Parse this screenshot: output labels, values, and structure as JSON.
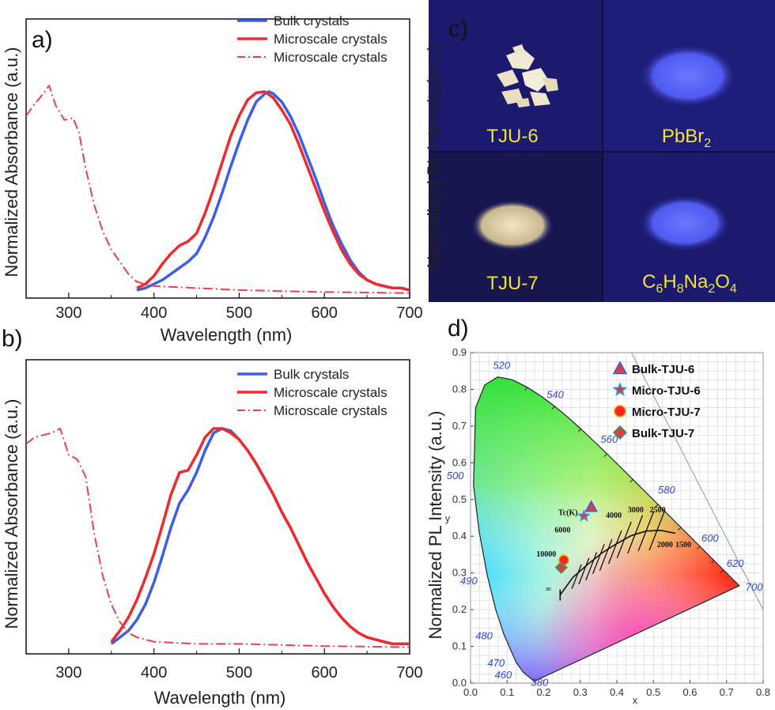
{
  "colors": {
    "bulk": "#3b5ee8",
    "micro": "#f02a2a",
    "dashdot": "#e8404a",
    "photo_bg": "#1b1a6e",
    "photo_label": "#f0e33a"
  },
  "chart_data": [
    {
      "panel": "a)",
      "type": "line",
      "xlabel": "Wavelength (nm)",
      "ylabel": "Normalized Absorbance (a.u.)",
      "xlim": [
        250,
        700
      ],
      "xticks": [
        "300",
        "400",
        "500",
        "600",
        "700"
      ],
      "legend_position": "top-right",
      "series": [
        {
          "name": "Bulk crystals",
          "style": "solid",
          "color": "#3b5ee8",
          "x": [
            380,
            390,
            400,
            410,
            420,
            430,
            440,
            450,
            460,
            470,
            480,
            490,
            500,
            510,
            520,
            530,
            535,
            540,
            550,
            560,
            570,
            580,
            590,
            600,
            610,
            620,
            630,
            640,
            650,
            660,
            670,
            680,
            690,
            700
          ],
          "y": [
            0.02,
            0.03,
            0.05,
            0.07,
            0.1,
            0.13,
            0.16,
            0.2,
            0.28,
            0.38,
            0.5,
            0.63,
            0.75,
            0.86,
            0.95,
            0.99,
            1.0,
            0.99,
            0.95,
            0.88,
            0.79,
            0.68,
            0.57,
            0.45,
            0.34,
            0.25,
            0.17,
            0.11,
            0.07,
            0.05,
            0.04,
            0.03,
            0.03,
            0.02
          ]
        },
        {
          "name": "Microscale crystals",
          "style": "solid",
          "color": "#f02a2a",
          "x": [
            380,
            390,
            400,
            405,
            410,
            420,
            430,
            440,
            450,
            460,
            470,
            480,
            490,
            500,
            510,
            520,
            530,
            540,
            550,
            560,
            570,
            580,
            590,
            600,
            610,
            620,
            630,
            640,
            650,
            660,
            670,
            680,
            690,
            700
          ],
          "y": [
            0.03,
            0.05,
            0.09,
            0.12,
            0.15,
            0.2,
            0.24,
            0.26,
            0.3,
            0.4,
            0.52,
            0.65,
            0.78,
            0.88,
            0.96,
            0.995,
            1.0,
            0.97,
            0.91,
            0.84,
            0.74,
            0.63,
            0.52,
            0.41,
            0.31,
            0.22,
            0.15,
            0.1,
            0.07,
            0.05,
            0.04,
            0.03,
            0.03,
            0.02
          ]
        },
        {
          "name": "Microscale crystals",
          "style": "dashdot",
          "color": "#e8404a",
          "x": [
            250,
            260,
            270,
            277,
            285,
            295,
            305,
            312,
            320,
            330,
            340,
            350,
            360,
            370,
            380,
            390,
            400,
            450,
            500,
            550,
            600,
            650,
            700
          ],
          "y": [
            0.88,
            0.94,
            0.99,
            1.03,
            0.93,
            0.86,
            0.87,
            0.8,
            0.62,
            0.44,
            0.31,
            0.22,
            0.16,
            0.1,
            0.06,
            0.05,
            0.04,
            0.03,
            0.02,
            0.015,
            0.01,
            0.008,
            0.005
          ]
        }
      ]
    },
    {
      "panel": "b)",
      "type": "line",
      "xlabel": "Wavelength (nm)",
      "ylabel": "Normalized Absorbance (a.u.)",
      "xlim": [
        250,
        700
      ],
      "xticks": [
        "300",
        "400",
        "500",
        "600",
        "700"
      ],
      "legend_position": "top-right",
      "series": [
        {
          "name": "Bulk crystals",
          "style": "solid",
          "color": "#3b5ee8",
          "x": [
            350,
            360,
            370,
            380,
            390,
            400,
            410,
            420,
            430,
            440,
            450,
            460,
            470,
            480,
            490,
            500,
            510,
            520,
            530,
            540,
            550,
            560,
            570,
            580,
            590,
            600,
            610,
            620,
            630,
            640,
            650,
            660,
            670,
            680,
            690,
            700
          ],
          "y": [
            0.02,
            0.05,
            0.08,
            0.13,
            0.2,
            0.3,
            0.42,
            0.55,
            0.66,
            0.72,
            0.8,
            0.9,
            0.98,
            1.0,
            0.99,
            0.95,
            0.9,
            0.84,
            0.77,
            0.7,
            0.62,
            0.55,
            0.47,
            0.39,
            0.32,
            0.25,
            0.19,
            0.14,
            0.1,
            0.07,
            0.05,
            0.04,
            0.03,
            0.02,
            0.02,
            0.02
          ]
        },
        {
          "name": "Microscale crystals",
          "style": "solid",
          "color": "#f02a2a",
          "x": [
            350,
            360,
            370,
            380,
            390,
            400,
            410,
            420,
            430,
            440,
            450,
            460,
            470,
            480,
            490,
            500,
            510,
            520,
            530,
            540,
            550,
            560,
            570,
            580,
            590,
            600,
            610,
            620,
            630,
            640,
            650,
            660,
            670,
            680,
            690,
            700
          ],
          "y": [
            0.03,
            0.08,
            0.14,
            0.22,
            0.32,
            0.43,
            0.56,
            0.7,
            0.8,
            0.81,
            0.88,
            0.96,
            1.0,
            1.0,
            0.98,
            0.95,
            0.9,
            0.84,
            0.77,
            0.7,
            0.62,
            0.55,
            0.47,
            0.39,
            0.32,
            0.25,
            0.19,
            0.14,
            0.1,
            0.07,
            0.05,
            0.04,
            0.03,
            0.02,
            0.02,
            0.02
          ]
        },
        {
          "name": "Microscale crystals",
          "style": "dashdot",
          "color": "#e8404a",
          "x": [
            250,
            260,
            270,
            280,
            290,
            300,
            310,
            320,
            330,
            340,
            350,
            360,
            370,
            380,
            400,
            450,
            500,
            550,
            600,
            650,
            700
          ],
          "y": [
            0.93,
            0.96,
            0.97,
            0.98,
            1.0,
            0.88,
            0.86,
            0.78,
            0.52,
            0.33,
            0.2,
            0.12,
            0.07,
            0.05,
            0.03,
            0.02,
            0.02,
            0.015,
            0.01,
            0.008,
            0.005
          ]
        }
      ]
    },
    {
      "panel": "d)",
      "type": "scatter",
      "xlabel": "x",
      "ylabel": "y",
      "xlim": [
        0.0,
        0.8
      ],
      "ylim": [
        0.0,
        0.9
      ],
      "xticks": [
        "0.0",
        "0.1",
        "0.2",
        "0.3",
        "0.4",
        "0.5",
        "0.6",
        "0.7",
        "0.8"
      ],
      "yticks": [
        "0.0",
        "0.1",
        "0.2",
        "0.3",
        "0.4",
        "0.5",
        "0.6",
        "0.7",
        "0.8",
        "0.9"
      ],
      "legend_position": "top-right",
      "points": [
        {
          "name": "Bulk-TJU-6",
          "marker": "triangle",
          "color": "#e23b3b",
          "edge": "#3b5ee8",
          "x": 0.33,
          "y": 0.48
        },
        {
          "name": "Micro-TJU-6",
          "marker": "star",
          "color": "#e23b3b",
          "edge": "#2aa0e8",
          "x": 0.31,
          "y": 0.455
        },
        {
          "name": "Micro-TJU-7",
          "marker": "circle",
          "color": "#ff2020",
          "edge": "#f0c020",
          "x": 0.255,
          "y": 0.335
        },
        {
          "name": "Bulk-TJU-7",
          "marker": "diamond",
          "color": "#e23b3b",
          "edge": "#2aa060",
          "x": 0.248,
          "y": 0.315
        }
      ],
      "wavelength_labels": [
        "520",
        "540",
        "560",
        "580",
        "600",
        "620",
        "700",
        "500",
        "490",
        "480",
        "470",
        "460",
        "380"
      ],
      "planckian_label": "Tc(K)",
      "ct_labels": [
        "10000",
        "6000",
        "4000",
        "3000",
        "2500",
        "2000",
        "1500",
        "∞"
      ]
    }
  ],
  "panel_c": {
    "label": "c)",
    "photos": [
      {
        "sample": "TJU-6"
      },
      {
        "sample": "PbBr",
        "sub": "2"
      },
      {
        "sample": "TJU-7"
      },
      {
        "formula_parts": [
          [
            "C",
            ""
          ],
          [
            "6",
            "sub"
          ],
          [
            "H",
            ""
          ],
          [
            "8",
            "sub"
          ],
          [
            "Na",
            ""
          ],
          [
            "2",
            "sub"
          ],
          [
            "O",
            ""
          ],
          [
            "4",
            "sub"
          ]
        ]
      }
    ]
  },
  "overlay_labels": {
    "c_ylabel": "Normalized PL Intensity(a.u.)",
    "d_ylabel": "Normalized PL Intensity (a.u.)"
  }
}
